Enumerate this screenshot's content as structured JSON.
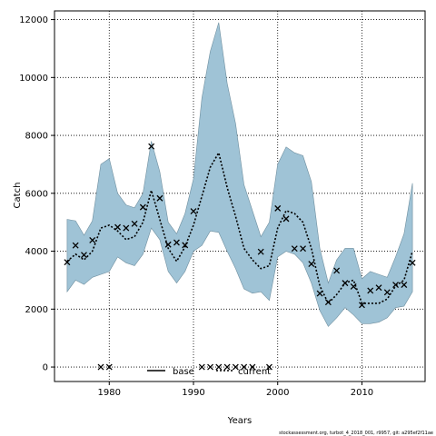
{
  "chart_data": {
    "type": "line",
    "xlabel": "Years",
    "ylabel": "Catch",
    "xlim": [
      1973.5,
      2017.5
    ],
    "ylim": [
      -500,
      12300
    ],
    "x_ticks": [
      1980,
      1990,
      2000,
      2010
    ],
    "y_ticks": [
      0,
      2000,
      4000,
      6000,
      8000,
      10000,
      12000
    ],
    "grid": true,
    "grid_style": "dotted",
    "legend": {
      "placement": "bottom-center",
      "entries": [
        "base",
        "current"
      ]
    },
    "footnote": "stockassessment.org, turbot_4_2018_001, r9957, git: a295ef2f11ae",
    "colors": {
      "band": "#9fc3d6",
      "band_edge": "#6f8f9f",
      "line": "#000000"
    },
    "series": [
      {
        "name": "current",
        "style": "dotted-line-with-band",
        "x": [
          1975,
          1976,
          1977,
          1978,
          1979,
          1980,
          1981,
          1982,
          1983,
          1984,
          1985,
          1986,
          1987,
          1988,
          1989,
          1990,
          1991,
          1992,
          1993,
          1994,
          1995,
          1996,
          1997,
          1998,
          1999,
          2000,
          2001,
          2002,
          2003,
          2004,
          2005,
          2006,
          2007,
          2008,
          2009,
          2010,
          2011,
          2012,
          2013,
          2014,
          2015,
          2016
        ],
        "estimate": [
          3650,
          3900,
          3700,
          4000,
          4800,
          4900,
          4700,
          4400,
          4500,
          5000,
          6100,
          5100,
          4100,
          3650,
          4150,
          4900,
          5900,
          6900,
          7400,
          6200,
          5200,
          4100,
          3700,
          3400,
          3500,
          4800,
          5400,
          5300,
          5000,
          4100,
          2800,
          2200,
          2500,
          2900,
          3000,
          2200,
          2200,
          2200,
          2350,
          2800,
          3000,
          4000
        ],
        "lower": [
          2600,
          3000,
          2850,
          3100,
          3200,
          3300,
          3800,
          3600,
          3500,
          3900,
          4800,
          4400,
          3300,
          2900,
          3300,
          4000,
          4200,
          4700,
          4650,
          4000,
          3400,
          2700,
          2550,
          2600,
          2300,
          3800,
          4000,
          3900,
          3600,
          2900,
          1950,
          1400,
          1700,
          2050,
          1800,
          1500,
          1500,
          1550,
          1700,
          2050,
          2100,
          2600
        ],
        "upper": [
          5100,
          5050,
          4550,
          5050,
          7000,
          7200,
          6000,
          5600,
          5500,
          6000,
          7800,
          6750,
          5000,
          4600,
          5300,
          6500,
          9300,
          10900,
          11900,
          9800,
          8400,
          6300,
          5400,
          4500,
          5000,
          7000,
          7600,
          7400,
          7300,
          6400,
          4100,
          2900,
          3700,
          4100,
          4100,
          3050,
          3300,
          3200,
          3100,
          3800,
          4600,
          6350
        ]
      },
      {
        "name": "base",
        "style": "cross-points",
        "x": [
          1975,
          1976,
          1977,
          1978,
          1979,
          1980,
          1981,
          1982,
          1983,
          1984,
          1985,
          1986,
          1987,
          1988,
          1989,
          1990,
          1991,
          1992,
          1993,
          1994,
          1995,
          1996,
          1997,
          1998,
          1999,
          2000,
          2001,
          2002,
          2003,
          2004,
          2005,
          2006,
          2007,
          2008,
          2009,
          2010,
          2011,
          2012,
          2013,
          2014,
          2015,
          2016
        ],
        "values": [
          3620,
          4200,
          3870,
          4380,
          0,
          0,
          4830,
          4800,
          4950,
          5520,
          7620,
          5830,
          4230,
          4300,
          4210,
          5380,
          0,
          0,
          0,
          0,
          0,
          0,
          0,
          3980,
          0,
          5480,
          5120,
          4090,
          4090,
          3560,
          2540,
          2240,
          3330,
          2900,
          2780,
          2140,
          2640,
          2740,
          2580,
          2840,
          2840,
          3600
        ]
      }
    ]
  }
}
